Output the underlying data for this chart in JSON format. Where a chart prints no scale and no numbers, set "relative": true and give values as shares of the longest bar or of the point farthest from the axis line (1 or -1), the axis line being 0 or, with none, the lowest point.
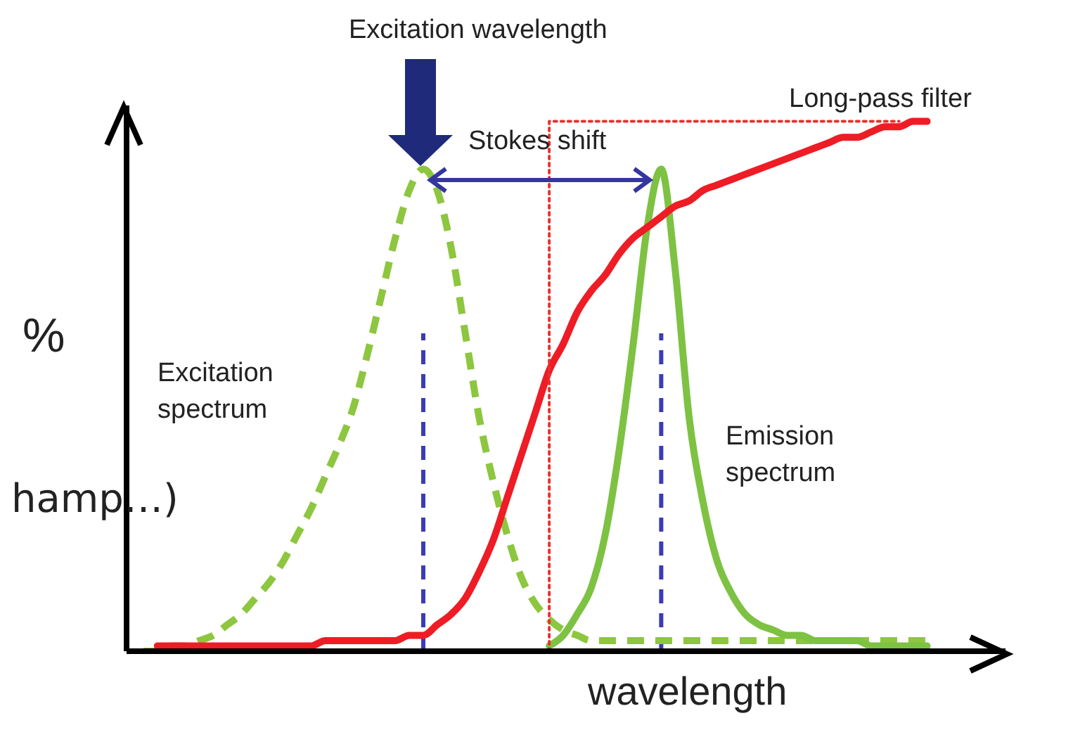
{
  "chart_data": {
    "type": "line",
    "relative": true,
    "xlabel": "wavelength",
    "ylabel": "%",
    "categories": [
      null,
      null,
      null,
      null,
      null,
      null,
      null,
      null,
      null,
      null,
      null,
      null,
      null,
      null,
      null,
      null,
      null,
      null,
      null,
      null,
      null,
      null,
      null,
      null,
      null,
      null,
      null,
      null,
      null,
      null,
      null,
      null,
      null,
      null,
      null,
      null,
      null,
      null,
      null,
      null,
      null,
      null,
      null,
      null,
      null,
      null,
      null,
      null,
      null,
      null,
      null,
      null,
      null,
      null,
      null,
      null,
      null
    ],
    "series": [
      {
        "name": "Excitation spectrum",
        "color": "#8dc63f",
        "line_style": "dashed",
        "values": [
          0,
          0,
          0.01,
          0.01,
          0.02,
          0.03,
          0.05,
          0.07,
          0.1,
          0.13,
          0.17,
          0.22,
          0.27,
          0.33,
          0.39,
          0.46,
          0.56,
          0.67,
          0.78,
          0.87,
          0.91,
          0.87,
          0.76,
          0.6,
          0.44,
          0.32,
          0.22,
          0.14,
          0.09,
          0.06,
          0.04,
          0.03,
          0.02,
          0.02,
          0.02,
          0.02,
          0.02,
          0.02,
          0.02,
          0.02,
          0.02,
          0.02,
          0.02,
          0.02,
          0.02,
          0.02,
          0.02,
          0.02,
          0.02,
          0.02,
          0.02,
          0.02,
          0.02,
          0.02,
          0.02,
          0.02,
          0.02
        ]
      },
      {
        "name": "Emission spectrum",
        "color": "#7dc242",
        "line_style": "solid",
        "values": [
          null,
          null,
          null,
          null,
          null,
          null,
          null,
          null,
          null,
          null,
          null,
          null,
          null,
          null,
          null,
          null,
          null,
          null,
          null,
          null,
          null,
          null,
          null,
          null,
          null,
          null,
          null,
          null,
          null,
          0.01,
          0.03,
          0.07,
          0.12,
          0.22,
          0.38,
          0.58,
          0.8,
          0.91,
          0.72,
          0.44,
          0.28,
          0.17,
          0.11,
          0.07,
          0.05,
          0.04,
          0.03,
          0.03,
          0.02,
          0.02,
          0.02,
          0.02,
          0.01,
          0.01,
          0.01,
          0.01,
          0.01
        ]
      },
      {
        "name": "Long-pass filter",
        "color": "#ee1c25",
        "line_style": "solid",
        "values": [
          null,
          0.01,
          0.01,
          0.01,
          0.01,
          0.01,
          0.01,
          0.01,
          0.01,
          0.01,
          0.01,
          0.01,
          0.01,
          0.02,
          0.02,
          0.02,
          0.02,
          0.02,
          0.02,
          0.03,
          0.03,
          0.05,
          0.07,
          0.1,
          0.15,
          0.21,
          0.29,
          0.37,
          0.45,
          0.53,
          0.58,
          0.64,
          0.68,
          0.71,
          0.75,
          0.78,
          0.8,
          0.82,
          0.84,
          0.85,
          0.87,
          0.88,
          0.89,
          0.9,
          0.91,
          0.92,
          0.93,
          0.94,
          0.95,
          0.96,
          0.97,
          0.97,
          0.98,
          0.99,
          0.99,
          1,
          1
        ]
      },
      {
        "type": "step",
        "color": "#e8322f",
        "line_style": "dotted",
        "values": [
          null,
          null,
          null,
          null,
          null,
          null,
          null,
          null,
          null,
          null,
          null,
          null,
          null,
          null,
          null,
          null,
          null,
          null,
          null,
          null,
          null,
          null,
          null,
          null,
          null,
          null,
          null,
          null,
          0,
          1,
          1,
          1,
          1,
          1,
          1,
          1,
          1,
          1,
          1,
          1,
          1,
          1,
          1,
          1,
          1,
          1,
          1,
          1,
          1,
          1,
          1,
          1,
          1,
          1,
          1,
          null,
          null
        ]
      }
    ],
    "annotations": [
      "Excitation wavelength",
      "Stokes shift",
      "hamp…)"
    ],
    "marker": "none",
    "grid": false,
    "legend": false
  }
}
